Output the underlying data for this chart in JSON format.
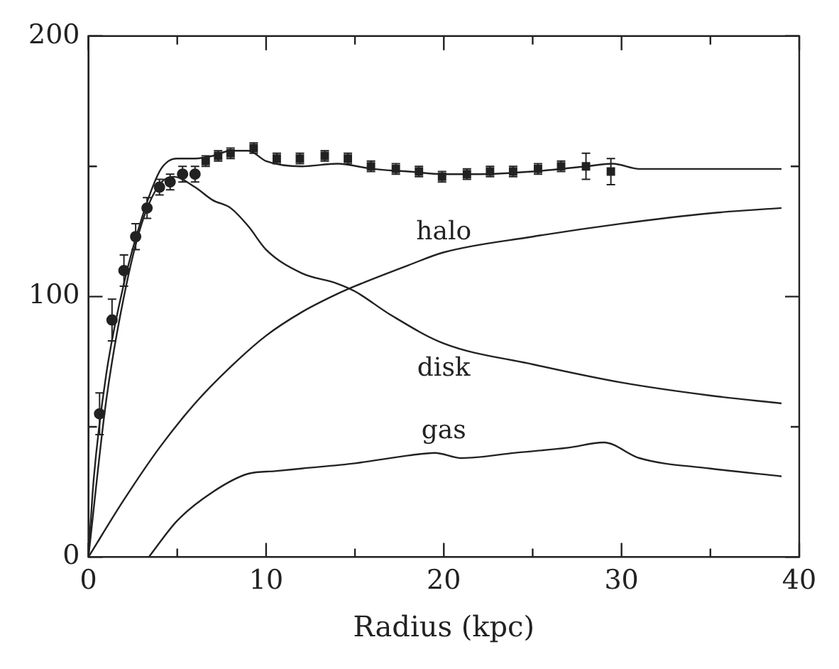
{
  "chart_data": {
    "type": "line",
    "xlabel": "Radius (kpc)",
    "xlim": [
      0,
      40
    ],
    "xticks": [
      0,
      {
        "value": 5,
        "label": null
      },
      10,
      {
        "value": 15,
        "label": null
      },
      20,
      {
        "value": 25,
        "label": null
      },
      30,
      {
        "value": 35,
        "label": null
      },
      40
    ],
    "ylim": [
      0,
      200
    ],
    "yticks": [
      0,
      {
        "value": 50,
        "label": null
      },
      100,
      {
        "value": 150,
        "label": null
      },
      200
    ],
    "grid": false,
    "legend": false,
    "series": [
      {
        "type": "scatter",
        "marker": "circle",
        "color": "#222222",
        "x": [
          0.63,
          1.33,
          2.0,
          2.66,
          3.3,
          4.0,
          4.6,
          5.3,
          6.0
        ],
        "values": [
          55,
          91,
          110,
          123,
          134,
          142,
          144,
          147,
          147
        ],
        "errors": [
          8,
          8,
          6,
          5,
          4,
          3,
          3,
          3,
          3
        ]
      },
      {
        "type": "scatter",
        "marker": "square",
        "color": "#222222",
        "x": [
          6.6,
          7.3,
          8.0,
          9.3,
          10.6,
          11.9,
          13.3,
          14.6,
          15.9,
          17.3,
          18.6,
          19.9,
          21.3,
          22.6,
          23.9,
          25.3,
          26.6,
          28.0,
          29.4
        ],
        "values": [
          152,
          154,
          155,
          157,
          153,
          153,
          154,
          153,
          150,
          149,
          148,
          146,
          147,
          148,
          148,
          149,
          150,
          150,
          148
        ],
        "errors": [
          2,
          2,
          2,
          2,
          2,
          2,
          2,
          2,
          2,
          2,
          2,
          2,
          2,
          2,
          2,
          2,
          2,
          5,
          5
        ]
      },
      {
        "marker": "none",
        "color": "#222222",
        "x": [
          0,
          0.3,
          1,
          2,
          3,
          4,
          4.5,
          5,
          6,
          7,
          8,
          9,
          10,
          12,
          14,
          16,
          18,
          20,
          22,
          25,
          28,
          29.5,
          31,
          35,
          39
        ],
        "values": [
          0,
          30,
          70,
          105,
          130,
          148,
          152,
          153,
          153,
          154,
          156,
          156,
          152,
          150,
          151,
          149,
          148,
          147,
          147,
          148,
          150,
          151,
          149,
          149,
          149
        ]
      },
      {
        "marker": "none",
        "name": "halo",
        "color": "#222222",
        "x": [
          0,
          2,
          4,
          6,
          8,
          10,
          12,
          14,
          15,
          18,
          20,
          25,
          30,
          35,
          39
        ],
        "values": [
          0,
          22,
          42,
          59,
          73,
          85,
          94,
          101,
          104,
          112,
          117,
          123,
          128,
          132,
          134
        ]
      },
      {
        "marker": "none",
        "name": "disk",
        "color": "#222222",
        "x": [
          0,
          1,
          2,
          3,
          4,
          4.8,
          6,
          7,
          8,
          9,
          10,
          12,
          14,
          15,
          17,
          20,
          25,
          30,
          35,
          39
        ],
        "values": [
          0,
          60,
          100,
          128,
          143,
          146,
          142,
          137,
          134,
          127,
          118,
          109,
          105,
          102,
          93,
          82,
          74,
          67,
          62,
          59
        ]
      },
      {
        "marker": "none",
        "name": "gas",
        "color": "#222222",
        "x": [
          3.4,
          5,
          7,
          9,
          10.5,
          12,
          15,
          18,
          19.5,
          21,
          24,
          27,
          29,
          31,
          35,
          39
        ],
        "values": [
          0,
          14,
          25,
          32,
          33,
          34,
          36,
          39,
          40,
          38,
          40,
          42,
          44,
          38,
          34,
          31
        ]
      }
    ]
  }
}
